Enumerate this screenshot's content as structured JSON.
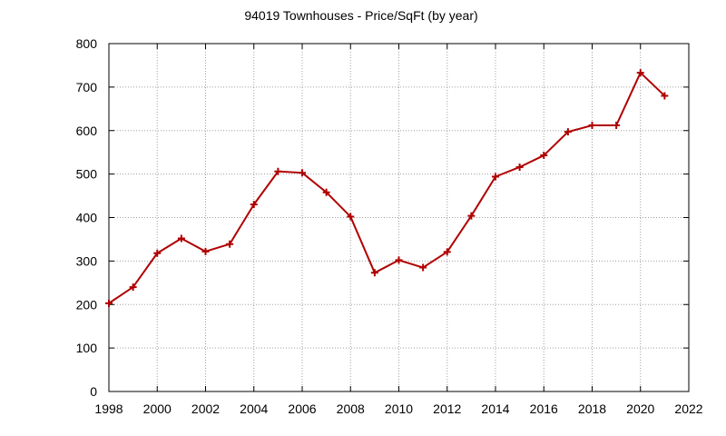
{
  "chart_data": {
    "type": "line",
    "title": "94019 Townhouses - Price/SqFt (by year)",
    "xlabel": "",
    "ylabel": "",
    "xlim": [
      1998,
      2022
    ],
    "ylim": [
      0,
      800
    ],
    "x_ticks": [
      1998,
      2000,
      2002,
      2004,
      2006,
      2008,
      2010,
      2012,
      2014,
      2016,
      2018,
      2020,
      2022
    ],
    "y_ticks": [
      0,
      100,
      200,
      300,
      400,
      500,
      600,
      700,
      800
    ],
    "grid": true,
    "legend": "none",
    "line_color": "#b00000",
    "marker": "plus",
    "series": [
      {
        "x": [
          1998,
          1999,
          2000,
          2001,
          2002,
          2003,
          2004,
          2005,
          2006,
          2007,
          2008,
          2009,
          2010,
          2011,
          2012,
          2013,
          2014,
          2015,
          2016,
          2017,
          2018,
          2019,
          2020,
          2021
        ],
        "values": [
          203,
          240,
          318,
          352,
          322,
          339,
          430,
          506,
          503,
          458,
          402,
          273,
          302,
          285,
          321,
          404,
          494,
          516,
          543,
          597,
          612,
          612,
          733,
          680
        ]
      }
    ]
  }
}
